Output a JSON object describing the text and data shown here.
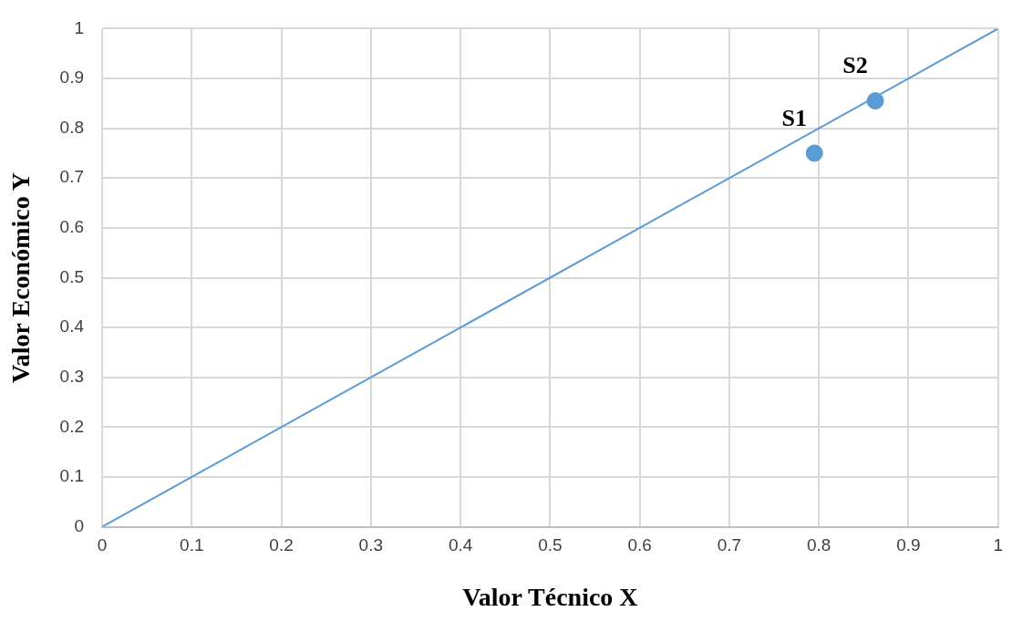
{
  "chart_data": {
    "type": "scatter",
    "xlabel": "Valor Técnico X",
    "ylabel": "Valor Económico Y",
    "series": [
      {
        "type": "line",
        "color": "#5b9bd5",
        "x": [
          0,
          1
        ],
        "values": [
          0,
          1
        ],
        "marker": "none"
      },
      {
        "type": "scatter",
        "color": "#5b9bd5",
        "x": [
          0.795,
          0.863
        ],
        "values": [
          0.75,
          0.855
        ],
        "marker": "circle"
      }
    ],
    "annotations": [
      {
        "text": "S1",
        "x": 0.795,
        "y": 0.75
      },
      {
        "text": "S2",
        "x": 0.863,
        "y": 0.855
      }
    ],
    "xlim": [
      0,
      1
    ],
    "ylim": [
      0,
      1
    ],
    "xticks": [
      0,
      0.1,
      0.2,
      0.3,
      0.4,
      0.5,
      0.6,
      0.7,
      0.8,
      0.9,
      1
    ],
    "yticks": [
      0,
      0.1,
      0.2,
      0.3,
      0.4,
      0.5,
      0.6,
      0.7,
      0.8,
      0.9,
      1
    ],
    "grid": true,
    "legend": false
  }
}
